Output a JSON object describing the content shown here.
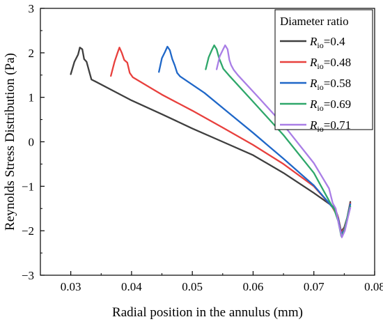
{
  "chart_data": {
    "type": "line",
    "title": "",
    "xlabel": "Radial position in the annulus (mm)",
    "ylabel": "Reynolds Stress Distribution (Pa)",
    "xlim": [
      0.025,
      0.08
    ],
    "ylim": [
      -3,
      3
    ],
    "xticks": [
      "0.03",
      "0.04",
      "0.05",
      "0.06",
      "0.07",
      "0.08"
    ],
    "yticks": [
      "3",
      "2",
      "1",
      "0",
      "−1",
      "−2",
      "−3"
    ],
    "grid": false,
    "legend": {
      "title": "Diameter ratio",
      "position": "top-right",
      "symbol": "R",
      "subscript": "io"
    },
    "series": [
      {
        "name": "=0.4",
        "color": "#3f3f3f",
        "points": [
          [
            0.03,
            1.52
          ],
          [
            0.0306,
            1.8
          ],
          [
            0.0312,
            1.96
          ],
          [
            0.0315,
            2.12
          ],
          [
            0.0319,
            2.08
          ],
          [
            0.0322,
            1.86
          ],
          [
            0.0326,
            1.8
          ],
          [
            0.033,
            1.6
          ],
          [
            0.0334,
            1.4
          ],
          [
            0.034,
            1.36
          ],
          [
            0.04,
            0.93
          ],
          [
            0.045,
            0.62
          ],
          [
            0.05,
            0.3
          ],
          [
            0.055,
            0.0
          ],
          [
            0.06,
            -0.3
          ],
          [
            0.065,
            -0.7
          ],
          [
            0.07,
            -1.15
          ],
          [
            0.073,
            -1.44
          ],
          [
            0.0735,
            -1.5
          ],
          [
            0.074,
            -1.7
          ],
          [
            0.0745,
            -2.02
          ],
          [
            0.075,
            -1.92
          ],
          [
            0.0755,
            -1.7
          ],
          [
            0.076,
            -1.35
          ]
        ]
      },
      {
        "name": "=0.48",
        "color": "#e8403d",
        "points": [
          [
            0.0366,
            1.48
          ],
          [
            0.0372,
            1.8
          ],
          [
            0.0377,
            2.0
          ],
          [
            0.038,
            2.12
          ],
          [
            0.0384,
            2.0
          ],
          [
            0.0388,
            1.84
          ],
          [
            0.0393,
            1.78
          ],
          [
            0.0397,
            1.55
          ],
          [
            0.0402,
            1.45
          ],
          [
            0.045,
            1.06
          ],
          [
            0.05,
            0.7
          ],
          [
            0.055,
            0.32
          ],
          [
            0.06,
            -0.07
          ],
          [
            0.065,
            -0.5
          ],
          [
            0.07,
            -1.0
          ],
          [
            0.073,
            -1.46
          ],
          [
            0.074,
            -1.7
          ],
          [
            0.0745,
            -2.05
          ],
          [
            0.075,
            -1.95
          ],
          [
            0.0755,
            -1.7
          ],
          [
            0.076,
            -1.38
          ]
        ]
      },
      {
        "name": "=0.58",
        "color": "#1f67c8",
        "points": [
          [
            0.0445,
            1.57
          ],
          [
            0.045,
            1.88
          ],
          [
            0.0455,
            2.02
          ],
          [
            0.0459,
            2.14
          ],
          [
            0.0463,
            2.06
          ],
          [
            0.0467,
            1.86
          ],
          [
            0.0471,
            1.72
          ],
          [
            0.0475,
            1.55
          ],
          [
            0.048,
            1.47
          ],
          [
            0.052,
            1.1
          ],
          [
            0.056,
            0.65
          ],
          [
            0.06,
            0.2
          ],
          [
            0.065,
            -0.38
          ],
          [
            0.07,
            -0.98
          ],
          [
            0.0728,
            -1.43
          ],
          [
            0.0733,
            -1.5
          ],
          [
            0.074,
            -1.72
          ],
          [
            0.0745,
            -2.08
          ],
          [
            0.075,
            -1.98
          ],
          [
            0.0755,
            -1.7
          ],
          [
            0.076,
            -1.4
          ]
        ]
      },
      {
        "name": "=0.69",
        "color": "#2ea76a",
        "points": [
          [
            0.0522,
            1.63
          ],
          [
            0.0527,
            1.9
          ],
          [
            0.0532,
            2.06
          ],
          [
            0.0536,
            2.17
          ],
          [
            0.054,
            2.08
          ],
          [
            0.0544,
            1.88
          ],
          [
            0.0547,
            1.78
          ],
          [
            0.0551,
            1.64
          ],
          [
            0.056,
            1.5
          ],
          [
            0.06,
            0.9
          ],
          [
            0.065,
            0.15
          ],
          [
            0.07,
            -0.7
          ],
          [
            0.0728,
            -1.4
          ],
          [
            0.0733,
            -1.5
          ],
          [
            0.074,
            -1.78
          ],
          [
            0.0745,
            -2.12
          ],
          [
            0.075,
            -2.0
          ],
          [
            0.0755,
            -1.7
          ],
          [
            0.076,
            -1.45
          ]
        ]
      },
      {
        "name": "=0.71",
        "color": "#a97ee6",
        "points": [
          [
            0.054,
            1.63
          ],
          [
            0.0545,
            1.92
          ],
          [
            0.055,
            2.06
          ],
          [
            0.0554,
            2.17
          ],
          [
            0.0558,
            2.08
          ],
          [
            0.0561,
            1.84
          ],
          [
            0.0564,
            1.72
          ],
          [
            0.0568,
            1.62
          ],
          [
            0.0575,
            1.5
          ],
          [
            0.061,
            0.98
          ],
          [
            0.065,
            0.38
          ],
          [
            0.07,
            -0.48
          ],
          [
            0.0725,
            -1.05
          ],
          [
            0.0731,
            -1.38
          ],
          [
            0.0736,
            -1.5
          ],
          [
            0.0741,
            -1.85
          ],
          [
            0.0746,
            -2.15
          ],
          [
            0.0751,
            -2.0
          ],
          [
            0.0756,
            -1.7
          ],
          [
            0.076,
            -1.48
          ]
        ]
      }
    ]
  }
}
